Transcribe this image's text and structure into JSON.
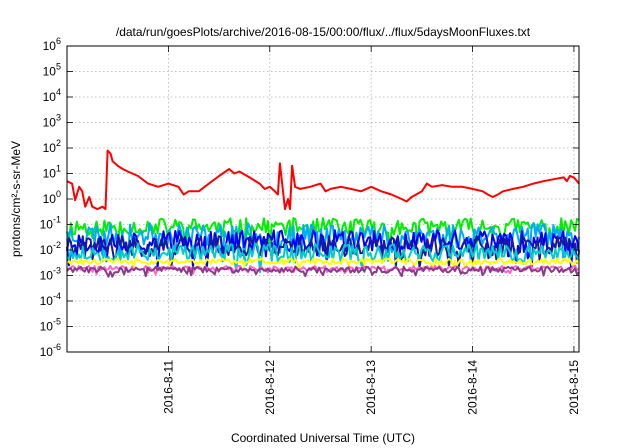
{
  "chart_data": {
    "type": "line",
    "title": "/data/run/goesPlots/archive/2016-08-15/00:00/flux/../flux/5daysMoonFluxes.txt",
    "xlabel": "Coordinated Universal Time (UTC)",
    "ylabel": "protons/cm²-s-sr-MeV",
    "y_scale": "log",
    "ylim": [
      1e-06,
      1000000.0
    ],
    "xlim": [
      10.0,
      15.05
    ],
    "grid": true,
    "legend": "none",
    "y_ticks": [
      {
        "value": -6,
        "base": "10",
        "exp": "-6"
      },
      {
        "value": -5,
        "base": "10",
        "exp": "-5"
      },
      {
        "value": -4,
        "base": "10",
        "exp": "-4"
      },
      {
        "value": -3,
        "base": "10",
        "exp": "-3"
      },
      {
        "value": -2,
        "base": "10",
        "exp": "-2"
      },
      {
        "value": -1,
        "base": "10",
        "exp": "-1"
      },
      {
        "value": 0,
        "base": "10",
        "exp": "0"
      },
      {
        "value": 1,
        "base": "10",
        "exp": "1"
      },
      {
        "value": 2,
        "base": "10",
        "exp": "2"
      },
      {
        "value": 3,
        "base": "10",
        "exp": "3"
      },
      {
        "value": 4,
        "base": "10",
        "exp": "4"
      },
      {
        "value": 5,
        "base": "10",
        "exp": "5"
      },
      {
        "value": 6,
        "base": "10",
        "exp": "6"
      }
    ],
    "x_ticks": [
      {
        "value": 11,
        "label": "2016-8-11"
      },
      {
        "value": 12,
        "label": "2016-8-12"
      },
      {
        "value": 13,
        "label": "2016-8-13"
      },
      {
        "value": 14,
        "label": "2016-8-14"
      },
      {
        "value": 15,
        "label": "2016-8-15"
      }
    ],
    "series": [
      {
        "color": "#ff0000",
        "points": [
          [
            10.0,
            5
          ],
          [
            10.05,
            4
          ],
          [
            10.08,
            0.9
          ],
          [
            10.12,
            3
          ],
          [
            10.15,
            2
          ],
          [
            10.18,
            0.5
          ],
          [
            10.22,
            1.2
          ],
          [
            10.25,
            0.5
          ],
          [
            10.3,
            0.4
          ],
          [
            10.35,
            0.5
          ],
          [
            10.38,
            0.4
          ],
          [
            10.4,
            80
          ],
          [
            10.43,
            60
          ],
          [
            10.45,
            30
          ],
          [
            10.5,
            20
          ],
          [
            10.55,
            15
          ],
          [
            10.6,
            12
          ],
          [
            10.7,
            8
          ],
          [
            10.8,
            4
          ],
          [
            10.9,
            3
          ],
          [
            11.0,
            4
          ],
          [
            11.1,
            3
          ],
          [
            11.15,
            1.5
          ],
          [
            11.2,
            2
          ],
          [
            11.3,
            2
          ],
          [
            11.4,
            4
          ],
          [
            11.5,
            8
          ],
          [
            11.6,
            15
          ],
          [
            11.65,
            10
          ],
          [
            11.7,
            12
          ],
          [
            11.8,
            7
          ],
          [
            11.9,
            4
          ],
          [
            11.95,
            2.5
          ],
          [
            12.0,
            3
          ],
          [
            12.05,
            2
          ],
          [
            12.08,
            1.5
          ],
          [
            12.1,
            25
          ],
          [
            12.13,
            2
          ],
          [
            12.15,
            0.4
          ],
          [
            12.18,
            1
          ],
          [
            12.2,
            0.4
          ],
          [
            12.22,
            20
          ],
          [
            12.25,
            3
          ],
          [
            12.3,
            2.5
          ],
          [
            12.4,
            3
          ],
          [
            12.5,
            4
          ],
          [
            12.55,
            2
          ],
          [
            12.6,
            2.5
          ],
          [
            12.7,
            3
          ],
          [
            12.8,
            2.5
          ],
          [
            12.9,
            2
          ],
          [
            13.0,
            3
          ],
          [
            13.1,
            2
          ],
          [
            13.2,
            1.5
          ],
          [
            13.3,
            1
          ],
          [
            13.35,
            0.8
          ],
          [
            13.4,
            1.2
          ],
          [
            13.5,
            2
          ],
          [
            13.55,
            4
          ],
          [
            13.6,
            3
          ],
          [
            13.7,
            3.5
          ],
          [
            13.8,
            3
          ],
          [
            13.9,
            3
          ],
          [
            14.0,
            2.5
          ],
          [
            14.1,
            2
          ],
          [
            14.15,
            1.5
          ],
          [
            14.2,
            1.2
          ],
          [
            14.25,
            1.5
          ],
          [
            14.3,
            2
          ],
          [
            14.4,
            2.5
          ],
          [
            14.5,
            3
          ],
          [
            14.6,
            4
          ],
          [
            14.7,
            5
          ],
          [
            14.8,
            6
          ],
          [
            14.9,
            7
          ],
          [
            14.93,
            5
          ],
          [
            14.96,
            8
          ],
          [
            15.0,
            7
          ],
          [
            15.05,
            4
          ]
        ]
      },
      {
        "color": "#00ee00",
        "base": 0.08,
        "amp": 0.35,
        "seed": 11
      },
      {
        "color": "#00aaff",
        "base": 0.04,
        "amp": 0.45,
        "seed": 23
      },
      {
        "color": "#0000ff",
        "base": 0.022,
        "amp": 0.45,
        "seed": 37
      },
      {
        "color": "#1a1aa0",
        "base": 0.014,
        "amp": 0.4,
        "seed": 41
      },
      {
        "color": "#00cccc",
        "base": 0.008,
        "amp": 0.35,
        "seed": 53
      },
      {
        "color": "#ffff00",
        "base": 0.0035,
        "amp": 0.12,
        "seed": 61
      },
      {
        "color": "#ff66cc",
        "base": 0.0019,
        "amp": 0.1,
        "seed": 71
      },
      {
        "color": "#8b3a8b",
        "base": 0.0017,
        "amp": 0.12,
        "seed": 83
      }
    ]
  }
}
